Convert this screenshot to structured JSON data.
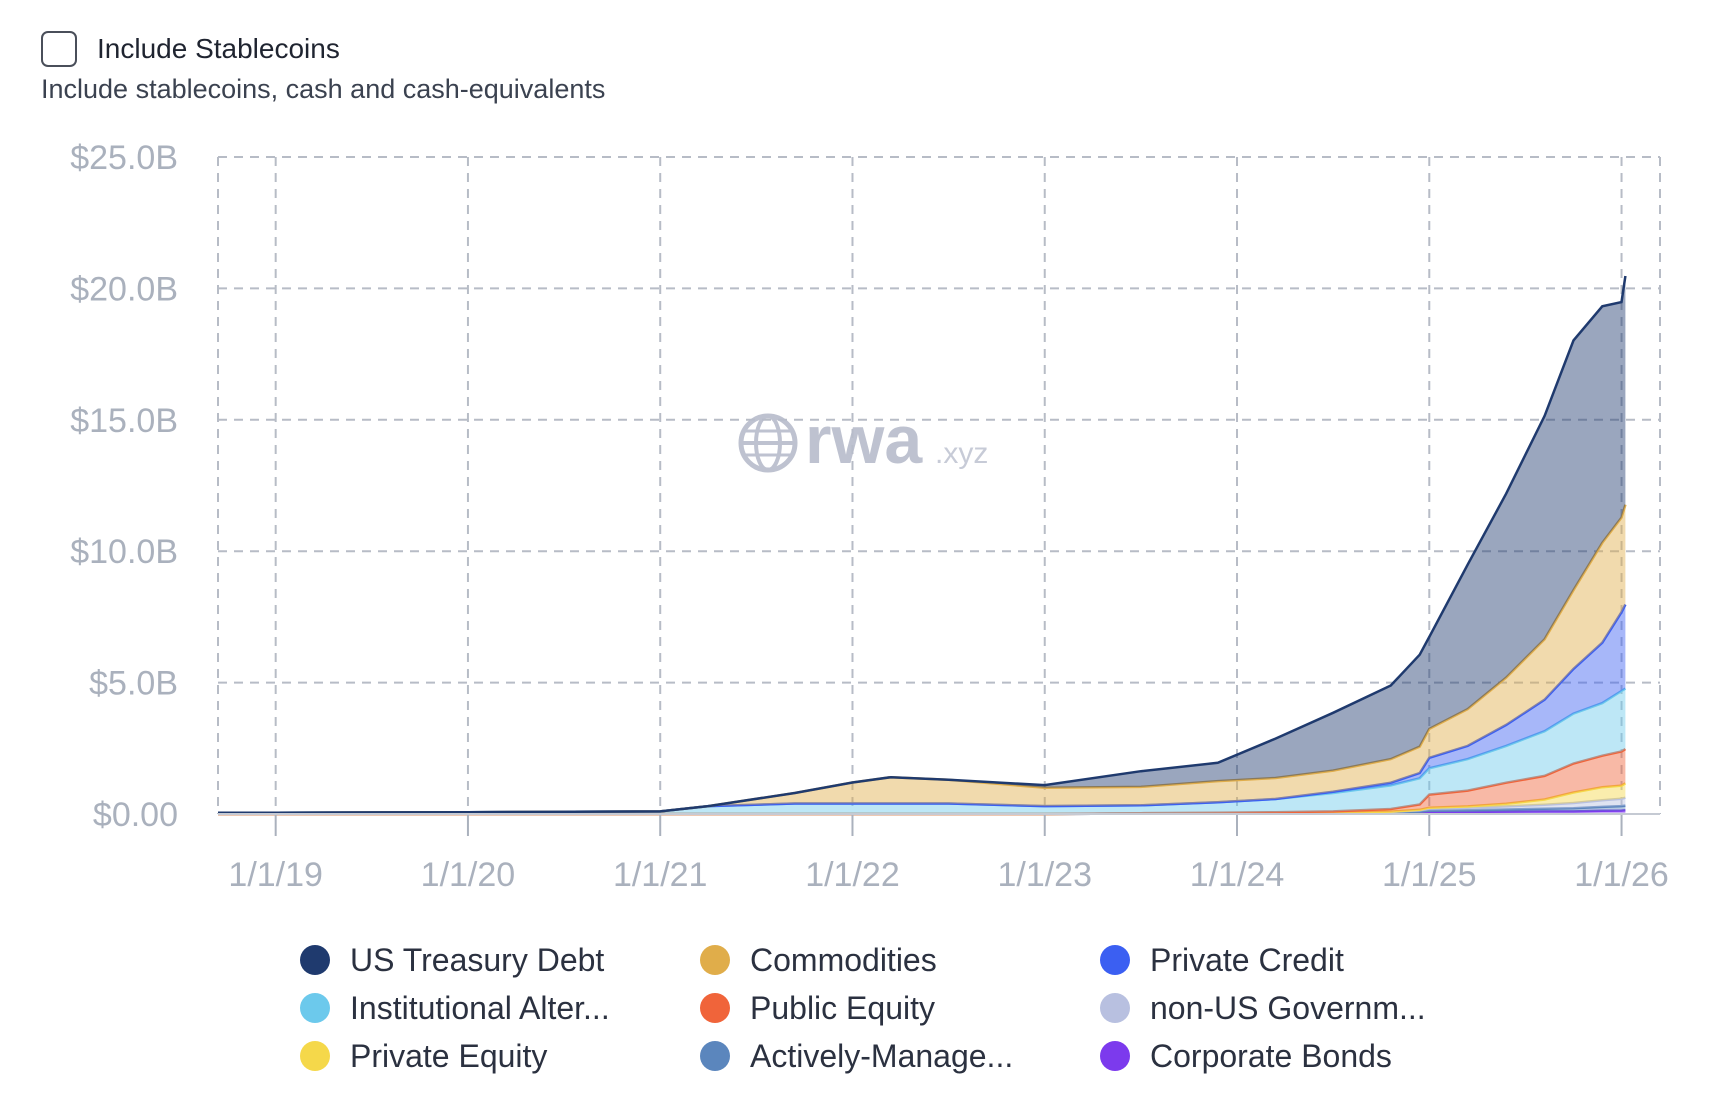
{
  "controls": {
    "include_stablecoins_label": "Include Stablecoins",
    "include_stablecoins_description": "Include stablecoins, cash and cash-equivalents",
    "include_stablecoins_checked": false
  },
  "watermark": {
    "main": "rwa",
    "suffix": ".xyz",
    "icon": "globe-icon"
  },
  "chart_data": {
    "type": "area",
    "stacked": true,
    "title": "",
    "xlabel": "",
    "ylabel": "",
    "ylim": [
      0,
      25
    ],
    "xlim": [
      2018.7,
      2026.2
    ],
    "y_ticks": [
      0,
      5,
      10,
      15,
      20,
      25
    ],
    "y_tick_labels": [
      "$0.00",
      "$5.0B",
      "$10.0B",
      "$15.0B",
      "$20.0B",
      "$25.0B"
    ],
    "x_ticks": [
      2019,
      2020,
      2021,
      2022,
      2023,
      2024,
      2025,
      2026
    ],
    "x_tick_labels": [
      "1/1/19",
      "1/1/20",
      "1/1/21",
      "1/1/22",
      "1/1/23",
      "1/1/24",
      "1/1/25",
      "1/1/26"
    ],
    "grid": true,
    "legend_position": "bottom",
    "x": [
      2018.7,
      2019.0,
      2020.0,
      2021.0,
      2021.25,
      2021.7,
      2022.0,
      2022.2,
      2022.5,
      2023.0,
      2023.5,
      2023.9,
      2024.2,
      2024.5,
      2024.8,
      2024.95,
      2025.0,
      2025.2,
      2025.4,
      2025.6,
      2025.75,
      2025.9,
      2026.0,
      2026.02
    ],
    "series": [
      {
        "name": "Corporate Bonds",
        "color": "#7c3aed",
        "values": [
          0,
          0,
          0,
          0,
          0,
          0,
          0,
          0,
          0,
          0,
          0.02,
          0.03,
          0.04,
          0.05,
          0.06,
          0.07,
          0.08,
          0.08,
          0.09,
          0.1,
          0.1,
          0.12,
          0.13,
          0.14
        ]
      },
      {
        "name": "Actively-Manage...",
        "color": "#5b86bd",
        "values": [
          0,
          0,
          0,
          0,
          0,
          0,
          0,
          0,
          0,
          0,
          0,
          0,
          0,
          0,
          0,
          0.02,
          0.05,
          0.06,
          0.08,
          0.1,
          0.12,
          0.15,
          0.17,
          0.18
        ]
      },
      {
        "name": "non-US Governm...",
        "color": "#b8c0e0",
        "values": [
          0,
          0,
          0,
          0,
          0,
          0,
          0,
          0,
          0,
          0,
          0,
          0,
          0,
          0,
          0.02,
          0.05,
          0.08,
          0.1,
          0.12,
          0.15,
          0.2,
          0.25,
          0.28,
          0.3
        ]
      },
      {
        "name": "Private Equity",
        "color": "#f5d84a",
        "values": [
          0,
          0,
          0,
          0,
          0,
          0,
          0,
          0,
          0,
          0,
          0,
          0,
          0,
          0,
          0.01,
          0.02,
          0.03,
          0.05,
          0.1,
          0.2,
          0.4,
          0.5,
          0.5,
          0.55
        ]
      },
      {
        "name": "Public Equity",
        "color": "#f0643a",
        "values": [
          0,
          0,
          0,
          0,
          0,
          0,
          0,
          0,
          0,
          0,
          0.01,
          0.02,
          0.03,
          0.05,
          0.1,
          0.2,
          0.5,
          0.6,
          0.8,
          0.9,
          1.1,
          1.2,
          1.3,
          1.3
        ]
      },
      {
        "name": "Institutional Alter...",
        "color": "#6cc9ec",
        "values": [
          0.05,
          0.05,
          0.07,
          0.1,
          0.3,
          0.4,
          0.4,
          0.4,
          0.4,
          0.3,
          0.3,
          0.4,
          0.5,
          0.7,
          0.9,
          1.0,
          1.0,
          1.2,
          1.4,
          1.7,
          1.9,
          2.0,
          2.3,
          2.3
        ]
      },
      {
        "name": "Private Credit",
        "color": "#3b5ff2",
        "values": [
          0,
          0,
          0,
          0,
          0,
          0,
          0,
          0,
          0,
          0,
          0,
          0,
          0,
          0.05,
          0.1,
          0.2,
          0.4,
          0.5,
          0.8,
          1.2,
          1.7,
          2.3,
          3.0,
          3.2
        ]
      },
      {
        "name": "Commodities",
        "color": "#e0ad4a",
        "values": [
          0,
          0,
          0,
          0,
          0,
          0.4,
          0.8,
          1.0,
          0.9,
          0.7,
          0.7,
          0.8,
          0.8,
          0.8,
          0.9,
          1.0,
          1.1,
          1.4,
          1.8,
          2.3,
          3.0,
          3.8,
          3.6,
          3.8
        ]
      },
      {
        "name": "US Treasury Debt",
        "color": "#1f3a6e",
        "values": [
          0,
          0,
          0,
          0,
          0,
          0,
          0,
          0,
          0,
          0.1,
          0.6,
          0.7,
          1.5,
          2.2,
          2.8,
          3.5,
          3.5,
          5.5,
          7.0,
          8.5,
          9.5,
          9.0,
          8.2,
          8.7
        ]
      }
    ],
    "legend_order": [
      "US Treasury Debt",
      "Commodities",
      "Private Credit",
      "Institutional Alter...",
      "Public Equity",
      "non-US Governm...",
      "Private Equity",
      "Actively-Manage...",
      "Corporate Bonds"
    ]
  }
}
